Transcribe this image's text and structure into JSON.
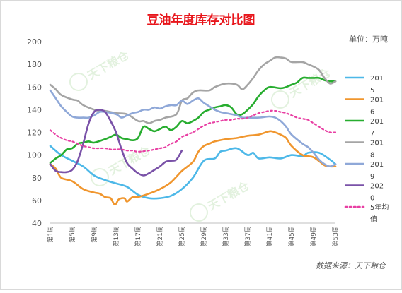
{
  "chart_data": {
    "type": "line",
    "title": "豆油年度库存对比图",
    "unit_label": "单位：万吨",
    "source": "数据来源：天下粮仓",
    "watermark": "天下粮仓",
    "ylim": [
      40,
      200
    ],
    "yticks": [
      40,
      60,
      80,
      100,
      120,
      140,
      160,
      180,
      200
    ],
    "xlim": [
      1,
      53
    ],
    "xtick_weeks": [
      1,
      5,
      9,
      13,
      17,
      21,
      25,
      29,
      33,
      37,
      41,
      45,
      49,
      53
    ],
    "xtick_labels": [
      "第1周",
      "第5周",
      "第9周",
      "第13周",
      "第17周",
      "第21周",
      "第25周",
      "第29周",
      "第33周",
      "第37周",
      "第41周",
      "第45周",
      "第49周",
      "第53周"
    ],
    "grid": false,
    "legend_position": "right",
    "series": [
      {
        "name": "2015",
        "color": "#4db8e8",
        "dash": false,
        "points": [
          [
            1,
            108
          ],
          [
            3,
            100
          ],
          [
            5,
            95
          ],
          [
            7,
            90
          ],
          [
            9,
            82
          ],
          [
            11,
            78
          ],
          [
            13,
            75
          ],
          [
            15,
            72
          ],
          [
            17,
            65
          ],
          [
            19,
            62
          ],
          [
            21,
            62
          ],
          [
            23,
            64
          ],
          [
            25,
            70
          ],
          [
            27,
            80
          ],
          [
            29,
            95
          ],
          [
            31,
            97
          ],
          [
            32,
            103
          ],
          [
            33,
            104
          ],
          [
            35,
            106
          ],
          [
            37,
            100
          ],
          [
            38,
            102
          ],
          [
            39,
            97
          ],
          [
            41,
            98
          ],
          [
            43,
            97
          ],
          [
            45,
            100
          ],
          [
            47,
            99
          ],
          [
            48,
            102
          ],
          [
            50,
            102
          ],
          [
            52,
            96
          ],
          [
            53,
            92
          ]
        ]
      },
      {
        "name": "2016",
        "color": "#f0962e",
        "dash": false,
        "points": [
          [
            1,
            92
          ],
          [
            2,
            88
          ],
          [
            3,
            80
          ],
          [
            5,
            77
          ],
          [
            7,
            70
          ],
          [
            9,
            67
          ],
          [
            10,
            66
          ],
          [
            11,
            63
          ],
          [
            12,
            62
          ],
          [
            12.6,
            57
          ],
          [
            13,
            57
          ],
          [
            13.5,
            61
          ],
          [
            14.5,
            62
          ],
          [
            15,
            59
          ],
          [
            16,
            63
          ],
          [
            17,
            63
          ],
          [
            19,
            66
          ],
          [
            21,
            70
          ],
          [
            23,
            76
          ],
          [
            25,
            86
          ],
          [
            27,
            94
          ],
          [
            28,
            103
          ],
          [
            29,
            108
          ],
          [
            30,
            110
          ],
          [
            31,
            112
          ],
          [
            33,
            114
          ],
          [
            35,
            115
          ],
          [
            37,
            117
          ],
          [
            39,
            118
          ],
          [
            41,
            121
          ],
          [
            42,
            120
          ],
          [
            43,
            118
          ],
          [
            44,
            115
          ],
          [
            45,
            108
          ],
          [
            47,
            100
          ],
          [
            49,
            98
          ],
          [
            51,
            91
          ],
          [
            52,
            90
          ],
          [
            53,
            90
          ]
        ]
      },
      {
        "name": "2017",
        "color": "#27ad2f",
        "dash": false,
        "points": [
          [
            1,
            93
          ],
          [
            2,
            97
          ],
          [
            3,
            100
          ],
          [
            4,
            105
          ],
          [
            5,
            106
          ],
          [
            6,
            110
          ],
          [
            7,
            111
          ],
          [
            8,
            112
          ],
          [
            9,
            111
          ],
          [
            11,
            114
          ],
          [
            12,
            116
          ],
          [
            13,
            118
          ],
          [
            14,
            115
          ],
          [
            15,
            114
          ],
          [
            16,
            113
          ],
          [
            17,
            115
          ],
          [
            18,
            125
          ],
          [
            19,
            123
          ],
          [
            20,
            121
          ],
          [
            21,
            123
          ],
          [
            22,
            125
          ],
          [
            23,
            122
          ],
          [
            24,
            125
          ],
          [
            25,
            130
          ],
          [
            26,
            128
          ],
          [
            27,
            130
          ],
          [
            28,
            133
          ],
          [
            29,
            138
          ],
          [
            30,
            140
          ],
          [
            31,
            142
          ],
          [
            32,
            143
          ],
          [
            33,
            144
          ],
          [
            34,
            142
          ],
          [
            35,
            136
          ],
          [
            36,
            136
          ],
          [
            37,
            140
          ],
          [
            38,
            145
          ],
          [
            39,
            152
          ],
          [
            40,
            157
          ],
          [
            41,
            160
          ],
          [
            43,
            159
          ],
          [
            44,
            160
          ],
          [
            45,
            162
          ],
          [
            46,
            164
          ],
          [
            47,
            168
          ],
          [
            48,
            168
          ],
          [
            49,
            168
          ],
          [
            50,
            168
          ],
          [
            51,
            166
          ],
          [
            52,
            165
          ],
          [
            53,
            165
          ]
        ]
      },
      {
        "name": "2018",
        "color": "#a5a5a5",
        "dash": false,
        "points": [
          [
            1,
            162
          ],
          [
            2,
            158
          ],
          [
            3,
            153
          ],
          [
            5,
            149
          ],
          [
            6,
            148
          ],
          [
            7,
            144
          ],
          [
            9,
            140
          ],
          [
            10,
            139
          ],
          [
            11,
            139
          ],
          [
            13,
            137
          ],
          [
            15,
            136
          ],
          [
            17,
            130
          ],
          [
            18,
            130
          ],
          [
            19,
            128
          ],
          [
            20,
            130
          ],
          [
            21,
            131
          ],
          [
            22,
            133
          ],
          [
            24,
            136
          ],
          [
            25,
            148
          ],
          [
            26,
            150
          ],
          [
            27,
            155
          ],
          [
            28,
            157
          ],
          [
            30,
            157
          ],
          [
            31,
            160
          ],
          [
            33,
            163
          ],
          [
            35,
            162
          ],
          [
            36,
            158
          ],
          [
            37,
            162
          ],
          [
            38,
            168
          ],
          [
            39,
            175
          ],
          [
            40,
            180
          ],
          [
            41,
            183
          ],
          [
            42,
            186
          ],
          [
            43,
            186
          ],
          [
            44,
            185
          ],
          [
            45,
            182
          ],
          [
            47,
            182
          ],
          [
            48,
            180
          ],
          [
            49,
            178
          ],
          [
            50,
            175
          ],
          [
            51,
            168
          ],
          [
            52,
            163
          ],
          [
            53,
            165
          ]
        ]
      },
      {
        "name": "2019",
        "color": "#8fa8d8",
        "dash": false,
        "points": [
          [
            1,
            157
          ],
          [
            2,
            150
          ],
          [
            3,
            143
          ],
          [
            4,
            138
          ],
          [
            5,
            134
          ],
          [
            6,
            133
          ],
          [
            7,
            133
          ],
          [
            8,
            133
          ],
          [
            9,
            135
          ],
          [
            10,
            138
          ],
          [
            11,
            138
          ],
          [
            13,
            136
          ],
          [
            14,
            133
          ],
          [
            15,
            135
          ],
          [
            16,
            137
          ],
          [
            17,
            138
          ],
          [
            18,
            140
          ],
          [
            19,
            140
          ],
          [
            20,
            142
          ],
          [
            21,
            141
          ],
          [
            22,
            143
          ],
          [
            23,
            144
          ],
          [
            24,
            144
          ],
          [
            25,
            148
          ],
          [
            26,
            145
          ],
          [
            27,
            148
          ],
          [
            28,
            150
          ],
          [
            29,
            146
          ],
          [
            30,
            143
          ],
          [
            31,
            140
          ],
          [
            32,
            138
          ],
          [
            33,
            137
          ],
          [
            35,
            135
          ],
          [
            36,
            133
          ],
          [
            37,
            133
          ],
          [
            39,
            133
          ],
          [
            41,
            134
          ],
          [
            42,
            133
          ],
          [
            43,
            130
          ],
          [
            44,
            125
          ],
          [
            45,
            118
          ],
          [
            47,
            110
          ],
          [
            48,
            107
          ],
          [
            49,
            102
          ],
          [
            50,
            96
          ],
          [
            51,
            92
          ],
          [
            52,
            90
          ],
          [
            53,
            92
          ]
        ]
      },
      {
        "name": "2020",
        "color": "#7a52a8",
        "dash": false,
        "points": [
          [
            1,
            92
          ],
          [
            2,
            86
          ],
          [
            3,
            85
          ],
          [
            4,
            85
          ],
          [
            5,
            87
          ],
          [
            6,
            95
          ],
          [
            7,
            110
          ],
          [
            8,
            128
          ],
          [
            9,
            138
          ],
          [
            10,
            140
          ],
          [
            11,
            138
          ],
          [
            12,
            130
          ],
          [
            13,
            120
          ],
          [
            14,
            105
          ],
          [
            15,
            93
          ],
          [
            16,
            88
          ],
          [
            17,
            84
          ],
          [
            18,
            82
          ],
          [
            19,
            84
          ],
          [
            20,
            87
          ],
          [
            21,
            90
          ],
          [
            22,
            94
          ],
          [
            23,
            95
          ],
          [
            24,
            96
          ],
          [
            25,
            104
          ]
        ]
      },
      {
        "name": "5年均值",
        "color": "#e83fa3",
        "dash": true,
        "points": [
          [
            1,
            122
          ],
          [
            2,
            118
          ],
          [
            3,
            115
          ],
          [
            4,
            113
          ],
          [
            5,
            112
          ],
          [
            6,
            110
          ],
          [
            7,
            108
          ],
          [
            8,
            107
          ],
          [
            9,
            106
          ],
          [
            11,
            106
          ],
          [
            12,
            105
          ],
          [
            13,
            105
          ],
          [
            14,
            105
          ],
          [
            15,
            104
          ],
          [
            16,
            104
          ],
          [
            17,
            103
          ],
          [
            19,
            104
          ],
          [
            20,
            105
          ],
          [
            21,
            106
          ],
          [
            22,
            107
          ],
          [
            23,
            110
          ],
          [
            24,
            112
          ],
          [
            25,
            116
          ],
          [
            26,
            118
          ],
          [
            27,
            120
          ],
          [
            28,
            123
          ],
          [
            29,
            126
          ],
          [
            30,
            128
          ],
          [
            31,
            129
          ],
          [
            32,
            130
          ],
          [
            33,
            131
          ],
          [
            34,
            131
          ],
          [
            35,
            132
          ],
          [
            36,
            132
          ],
          [
            37,
            133
          ],
          [
            38,
            135
          ],
          [
            39,
            137
          ],
          [
            40,
            138
          ],
          [
            41,
            139
          ],
          [
            42,
            139
          ],
          [
            43,
            138
          ],
          [
            44,
            137
          ],
          [
            45,
            135
          ],
          [
            46,
            133
          ],
          [
            47,
            132
          ],
          [
            48,
            131
          ],
          [
            49,
            128
          ],
          [
            50,
            125
          ],
          [
            51,
            122
          ],
          [
            52,
            120
          ],
          [
            53,
            120
          ]
        ]
      }
    ]
  }
}
